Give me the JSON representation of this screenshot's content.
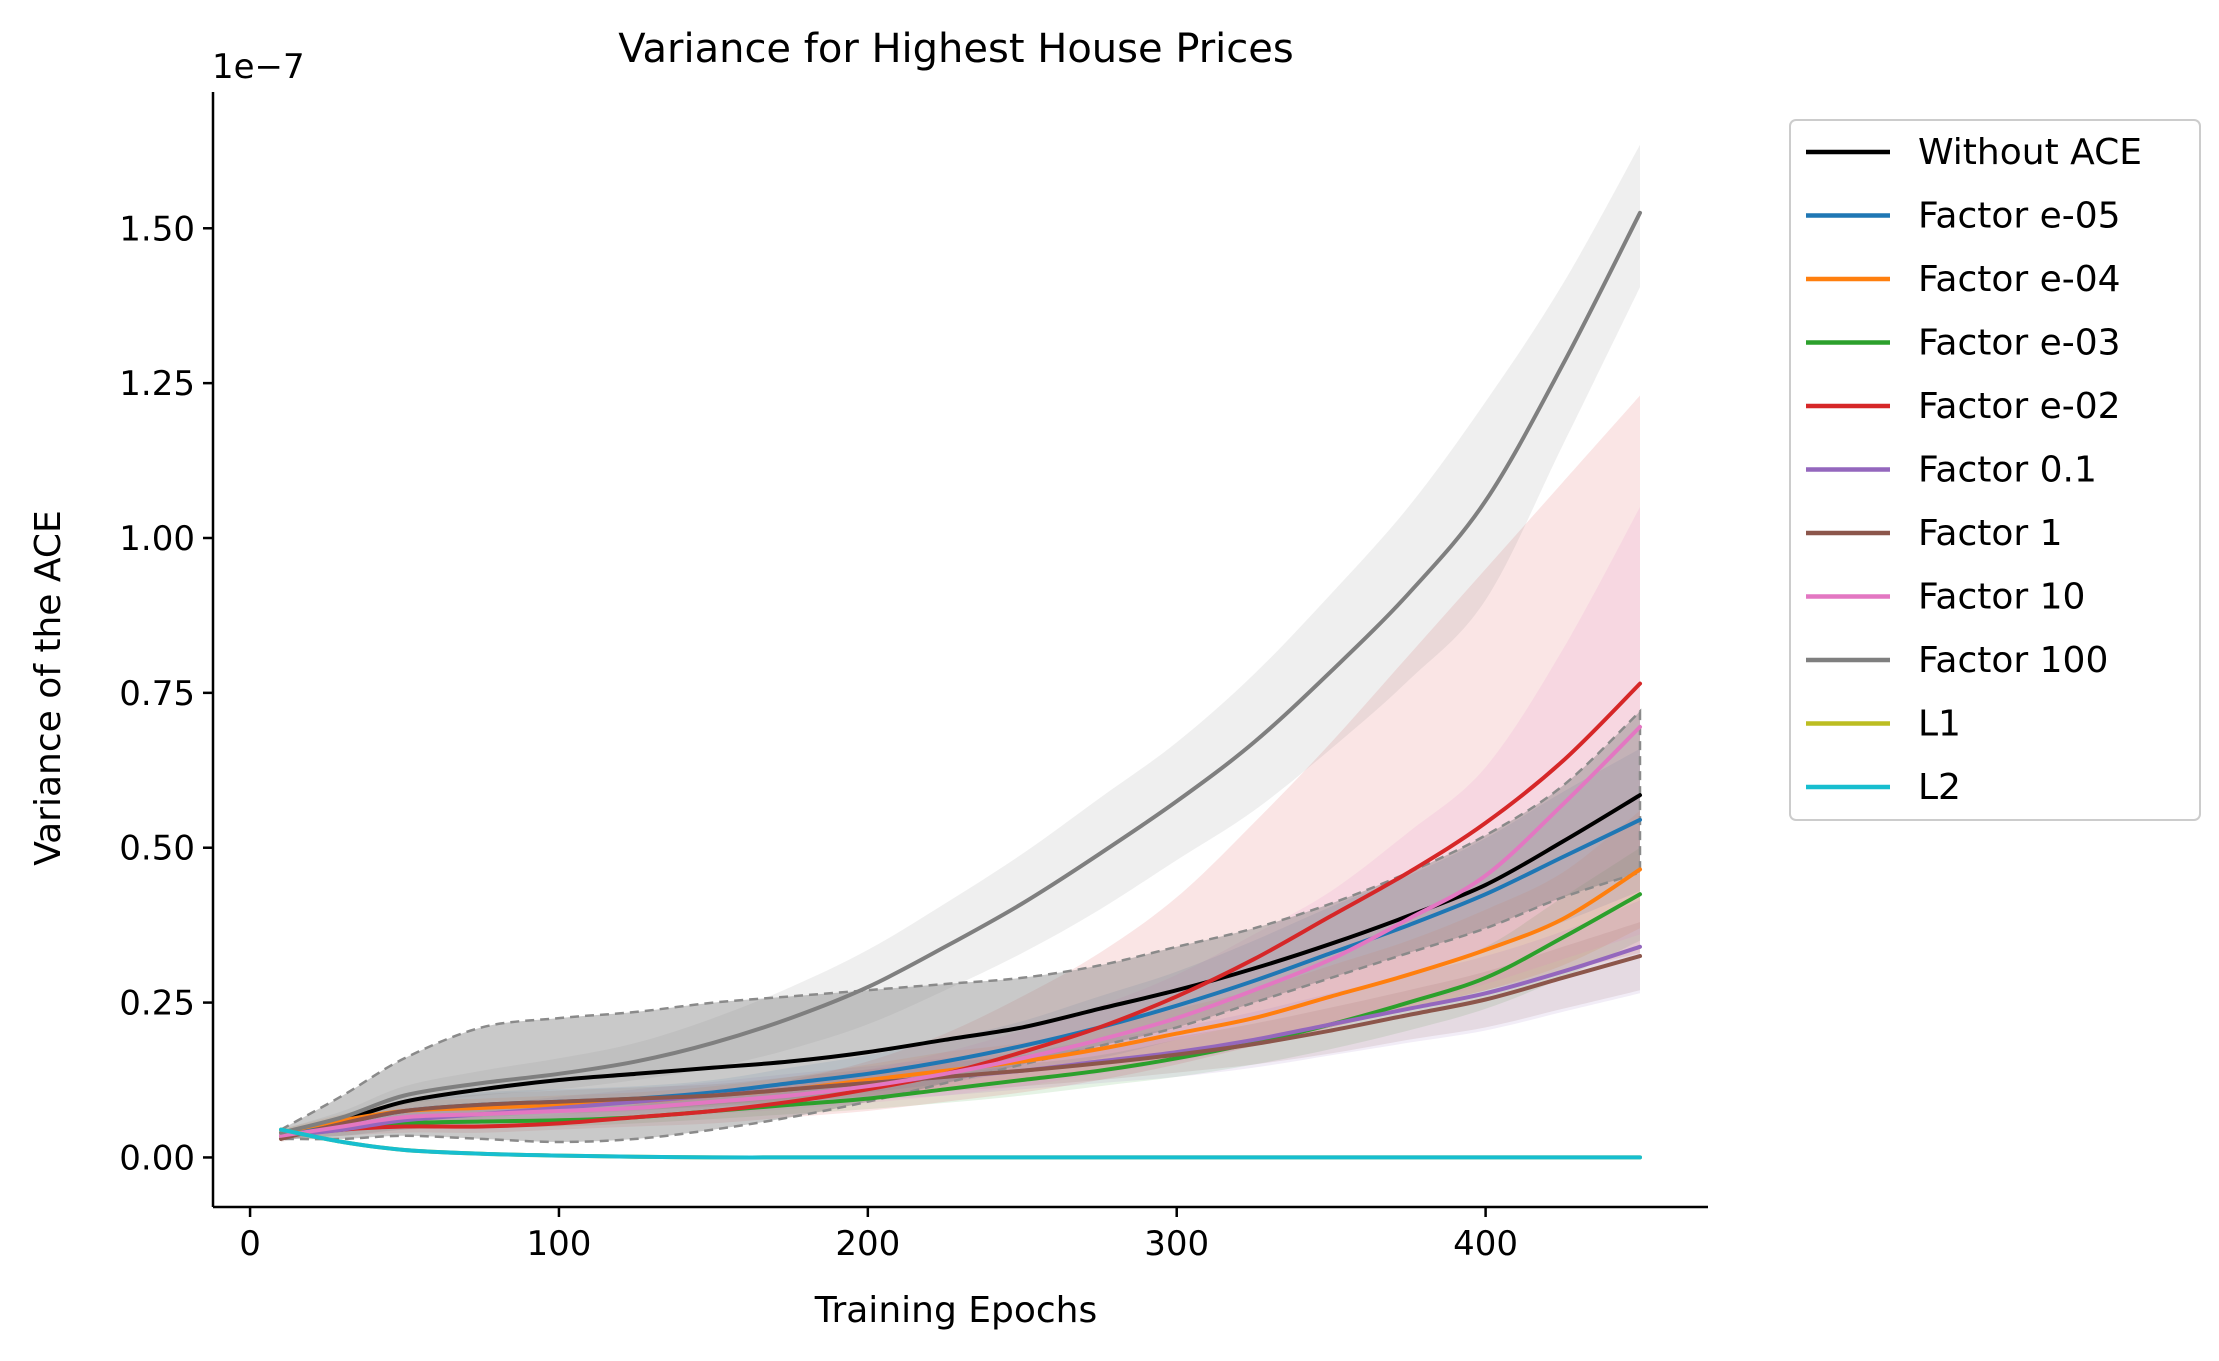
{
  "chart_data": {
    "type": "line",
    "title": "Variance for Highest House Prices",
    "xlabel": "Training Epochs",
    "ylabel": "Variance of the ACE",
    "y_scale_label": "1e−7",
    "xlim": [
      -12,
      472
    ],
    "ylim": [
      -0.08,
      1.72
    ],
    "x_ticks": [
      0,
      100,
      200,
      300,
      400
    ],
    "x_tick_labels": [
      "0",
      "100",
      "200",
      "300",
      "400"
    ],
    "y_ticks": [
      0,
      0.25,
      0.5,
      0.75,
      1.0,
      1.25,
      1.5
    ],
    "y_tick_labels": [
      "0.00",
      "0.25",
      "0.50",
      "0.75",
      "1.00",
      "1.25",
      "1.50"
    ],
    "grid": false,
    "legend_position": "outside-right",
    "x": [
      10,
      30,
      50,
      75,
      100,
      125,
      150,
      175,
      200,
      225,
      250,
      275,
      300,
      325,
      350,
      375,
      400,
      425,
      450
    ],
    "series": [
      {
        "name": "Without ACE",
        "color": "#000000",
        "values": [
          0.035,
          0.06,
          0.09,
          0.11,
          0.125,
          0.135,
          0.145,
          0.155,
          0.17,
          0.19,
          0.21,
          0.24,
          0.27,
          0.305,
          0.345,
          0.39,
          0.44,
          0.51,
          0.585
        ],
        "band_lower": [
          0.03,
          0.03,
          0.035,
          0.03,
          0.025,
          0.03,
          0.045,
          0.065,
          0.09,
          0.12,
          0.15,
          0.18,
          0.21,
          0.25,
          0.29,
          0.33,
          0.37,
          0.42,
          0.46
        ],
        "band_upper": [
          0.045,
          0.1,
          0.16,
          0.21,
          0.225,
          0.235,
          0.25,
          0.26,
          0.27,
          0.28,
          0.29,
          0.31,
          0.34,
          0.37,
          0.41,
          0.46,
          0.52,
          0.6,
          0.72
        ]
      },
      {
        "name": "Factor e-05",
        "color": "#1f77b4",
        "values": [
          0.035,
          0.055,
          0.075,
          0.085,
          0.09,
          0.095,
          0.105,
          0.12,
          0.135,
          0.155,
          0.18,
          0.21,
          0.245,
          0.285,
          0.33,
          0.375,
          0.425,
          0.485,
          0.545
        ],
        "band_lower": [
          0.03,
          0.045,
          0.06,
          0.065,
          0.07,
          0.075,
          0.085,
          0.095,
          0.105,
          0.12,
          0.14,
          0.16,
          0.19,
          0.22,
          0.255,
          0.295,
          0.335,
          0.38,
          0.43
        ],
        "band_upper": [
          0.04,
          0.065,
          0.09,
          0.105,
          0.11,
          0.115,
          0.125,
          0.145,
          0.165,
          0.19,
          0.22,
          0.26,
          0.3,
          0.35,
          0.405,
          0.455,
          0.515,
          0.59,
          0.66
        ]
      },
      {
        "name": "Factor e-04",
        "color": "#ff7f0e",
        "values": [
          0.04,
          0.06,
          0.075,
          0.08,
          0.085,
          0.09,
          0.1,
          0.11,
          0.125,
          0.14,
          0.155,
          0.175,
          0.2,
          0.225,
          0.26,
          0.295,
          0.335,
          0.385,
          0.465
        ],
        "band_lower": [
          0.035,
          0.05,
          0.06,
          0.065,
          0.07,
          0.075,
          0.085,
          0.09,
          0.1,
          0.11,
          0.125,
          0.14,
          0.16,
          0.18,
          0.21,
          0.24,
          0.27,
          0.31,
          0.37
        ],
        "band_upper": [
          0.045,
          0.07,
          0.09,
          0.095,
          0.1,
          0.105,
          0.115,
          0.13,
          0.15,
          0.17,
          0.185,
          0.21,
          0.24,
          0.27,
          0.31,
          0.35,
          0.4,
          0.46,
          0.56
        ]
      },
      {
        "name": "Factor e-03",
        "color": "#2ca02c",
        "values": [
          0.035,
          0.045,
          0.055,
          0.058,
          0.06,
          0.065,
          0.075,
          0.085,
          0.095,
          0.11,
          0.125,
          0.14,
          0.16,
          0.185,
          0.215,
          0.25,
          0.29,
          0.355,
          0.425
        ],
        "band_lower": [
          0.03,
          0.035,
          0.045,
          0.048,
          0.05,
          0.055,
          0.062,
          0.07,
          0.078,
          0.088,
          0.1,
          0.115,
          0.13,
          0.15,
          0.175,
          0.205,
          0.24,
          0.29,
          0.35
        ],
        "band_upper": [
          0.04,
          0.055,
          0.065,
          0.068,
          0.07,
          0.075,
          0.088,
          0.1,
          0.112,
          0.132,
          0.15,
          0.165,
          0.19,
          0.22,
          0.255,
          0.295,
          0.34,
          0.42,
          0.5
        ]
      },
      {
        "name": "Factor e-02",
        "color": "#d62728",
        "values": [
          0.035,
          0.045,
          0.05,
          0.05,
          0.055,
          0.065,
          0.075,
          0.09,
          0.11,
          0.135,
          0.17,
          0.21,
          0.26,
          0.32,
          0.39,
          0.46,
          0.54,
          0.64,
          0.765
        ],
        "band_lower": [
          0.03,
          0.035,
          0.04,
          0.04,
          0.045,
          0.05,
          0.055,
          0.065,
          0.075,
          0.09,
          0.105,
          0.125,
          0.15,
          0.18,
          0.21,
          0.24,
          0.27,
          0.3,
          0.33
        ],
        "band_upper": [
          0.04,
          0.055,
          0.06,
          0.065,
          0.07,
          0.085,
          0.1,
          0.125,
          0.155,
          0.2,
          0.26,
          0.33,
          0.42,
          0.54,
          0.67,
          0.81,
          0.95,
          1.09,
          1.23
        ]
      },
      {
        "name": "Factor 0.1",
        "color": "#9467bd",
        "values": [
          0.035,
          0.045,
          0.06,
          0.07,
          0.08,
          0.09,
          0.1,
          0.11,
          0.12,
          0.13,
          0.14,
          0.155,
          0.17,
          0.19,
          0.215,
          0.24,
          0.265,
          0.3,
          0.34
        ],
        "band_lower": [
          0.03,
          0.035,
          0.045,
          0.055,
          0.062,
          0.07,
          0.078,
          0.085,
          0.093,
          0.1,
          0.11,
          0.12,
          0.13,
          0.145,
          0.165,
          0.185,
          0.205,
          0.235,
          0.265
        ],
        "band_upper": [
          0.04,
          0.055,
          0.075,
          0.085,
          0.098,
          0.11,
          0.122,
          0.135,
          0.147,
          0.16,
          0.17,
          0.19,
          0.21,
          0.235,
          0.265,
          0.295,
          0.325,
          0.365,
          0.415
        ]
      },
      {
        "name": "Factor 1",
        "color": "#8c564b",
        "values": [
          0.03,
          0.055,
          0.075,
          0.085,
          0.09,
          0.095,
          0.1,
          0.11,
          0.12,
          0.13,
          0.14,
          0.152,
          0.166,
          0.183,
          0.205,
          0.23,
          0.255,
          0.29,
          0.325
        ],
        "band_lower": [
          0.025,
          0.045,
          0.06,
          0.068,
          0.072,
          0.077,
          0.082,
          0.09,
          0.098,
          0.107,
          0.115,
          0.125,
          0.137,
          0.15,
          0.168,
          0.19,
          0.21,
          0.24,
          0.27
        ],
        "band_upper": [
          0.035,
          0.065,
          0.09,
          0.102,
          0.108,
          0.113,
          0.118,
          0.13,
          0.142,
          0.153,
          0.165,
          0.179,
          0.195,
          0.216,
          0.242,
          0.27,
          0.3,
          0.34,
          0.38
        ]
      },
      {
        "name": "Factor 10",
        "color": "#e377c2",
        "values": [
          0.035,
          0.05,
          0.065,
          0.07,
          0.075,
          0.08,
          0.09,
          0.1,
          0.115,
          0.135,
          0.16,
          0.19,
          0.225,
          0.27,
          0.32,
          0.385,
          0.455,
          0.57,
          0.695
        ],
        "band_lower": [
          0.03,
          0.04,
          0.05,
          0.055,
          0.06,
          0.063,
          0.07,
          0.078,
          0.088,
          0.1,
          0.115,
          0.135,
          0.155,
          0.18,
          0.21,
          0.245,
          0.28,
          0.32,
          0.36
        ],
        "band_upper": [
          0.04,
          0.06,
          0.08,
          0.085,
          0.09,
          0.097,
          0.11,
          0.122,
          0.142,
          0.17,
          0.205,
          0.245,
          0.295,
          0.36,
          0.43,
          0.525,
          0.63,
          0.82,
          1.05
        ]
      },
      {
        "name": "Factor 100",
        "color": "#7f7f7f",
        "values": [
          0.04,
          0.065,
          0.1,
          0.12,
          0.135,
          0.155,
          0.185,
          0.225,
          0.275,
          0.34,
          0.41,
          0.49,
          0.575,
          0.67,
          0.785,
          0.91,
          1.06,
          1.28,
          1.525
        ],
        "band_lower": [
          0.035,
          0.055,
          0.085,
          0.1,
          0.11,
          0.125,
          0.145,
          0.175,
          0.215,
          0.27,
          0.33,
          0.4,
          0.48,
          0.56,
          0.66,
          0.77,
          0.9,
          1.15,
          1.405
        ],
        "band_upper": [
          0.045,
          0.075,
          0.115,
          0.14,
          0.16,
          0.185,
          0.225,
          0.275,
          0.335,
          0.41,
          0.49,
          0.58,
          0.67,
          0.78,
          0.91,
          1.05,
          1.22,
          1.41,
          1.635
        ]
      },
      {
        "name": "L1",
        "color": "#bcbd22",
        "values": [
          0.045,
          0.025,
          0.012,
          0.006,
          0.003,
          0.001,
          0.0,
          0.0,
          0.0,
          0.0,
          0.0,
          0.0,
          0.0,
          0.0,
          0.0,
          0.0,
          0.0,
          0.0,
          0.0
        ]
      },
      {
        "name": "L2",
        "color": "#17becf",
        "values": [
          0.045,
          0.025,
          0.012,
          0.006,
          0.003,
          0.001,
          0.0,
          0.0,
          0.0,
          0.0,
          0.0,
          0.0,
          0.0,
          0.0,
          0.0,
          0.0,
          0.0,
          0.0,
          0.0
        ]
      }
    ]
  }
}
